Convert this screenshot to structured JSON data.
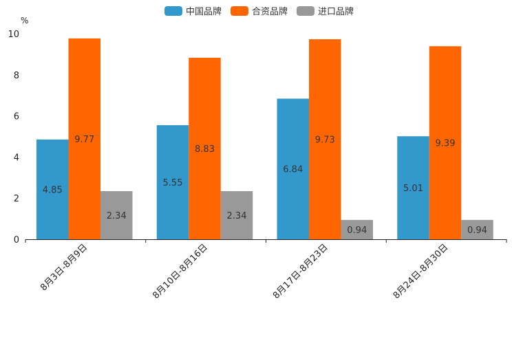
{
  "chart_data": {
    "type": "bar",
    "title": "",
    "xlabel": "",
    "ylabel": "",
    "unit_label": "%",
    "categories": [
      "8月3日-8月9日",
      "8月10日-8月16日",
      "8月17日-8月23日",
      "8月24日-8月30日"
    ],
    "series": [
      {
        "name": "中国品牌",
        "color": "#3399cc",
        "values": [
          4.85,
          5.55,
          6.84,
          5.01
        ]
      },
      {
        "name": "合资品牌",
        "color": "#ff6600",
        "values": [
          9.77,
          8.83,
          9.73,
          9.39
        ]
      },
      {
        "name": "进口品牌",
        "color": "#999999",
        "values": [
          2.34,
          2.34,
          0.94,
          0.94
        ]
      }
    ],
    "ylim": [
      0,
      10
    ],
    "yticks": [
      0,
      2,
      4,
      6,
      8,
      10
    ],
    "legend_position": "top-center",
    "grid": false
  }
}
